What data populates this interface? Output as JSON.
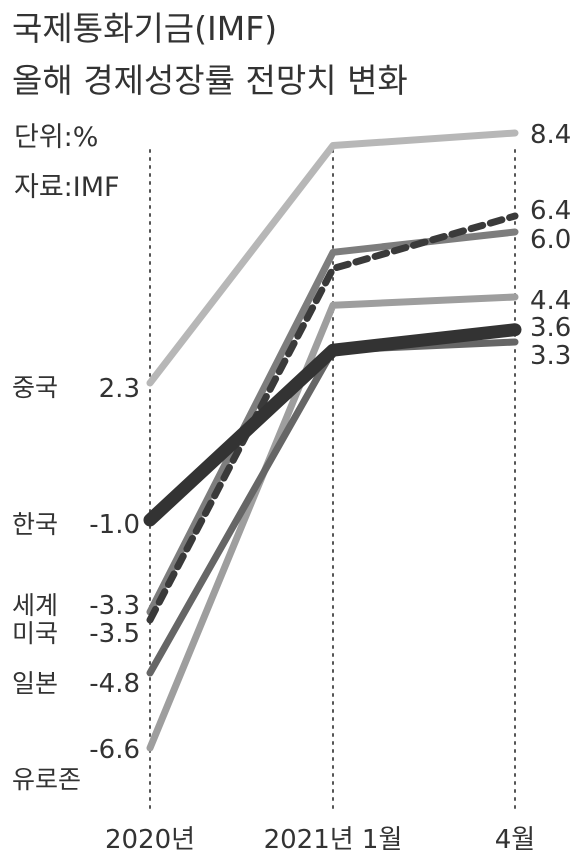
{
  "header": {
    "title_line1": "국제통화기금(IMF)",
    "title_line2": "올해 경제성장률 전망치 변화",
    "unit": "단위:%",
    "source": "자료:IMF"
  },
  "chart_data": {
    "type": "line",
    "title": "국제통화기금(IMF) 올해 경제성장률 전망치 변화",
    "unit": "단위:%",
    "source": "자료:IMF",
    "categories": [
      "2020년",
      "2021년 1월",
      "4월"
    ],
    "ylim": [
      -6.6,
      8.4
    ],
    "grid": "vertical dotted lines at each category",
    "legend": "direct labels at left and right",
    "series": [
      {
        "name": "중국",
        "values": [
          2.3,
          8.1,
          8.4
        ],
        "color": "#b7b7b7",
        "dashed": false,
        "width": 7,
        "start_label": "2.3",
        "end_label": "8.4"
      },
      {
        "name": "미국",
        "values": [
          -3.5,
          5.1,
          6.4
        ],
        "color": "#3a3a3a",
        "dashed": true,
        "width": 7,
        "start_label": "-3.5",
        "end_label": "6.4"
      },
      {
        "name": "세계",
        "values": [
          -3.3,
          5.5,
          6.0
        ],
        "color": "#7d7d7d",
        "dashed": false,
        "width": 7,
        "start_label": "-3.3",
        "end_label": "6.0"
      },
      {
        "name": "유로존",
        "values": [
          -6.6,
          4.2,
          4.4
        ],
        "color": "#9e9e9e",
        "dashed": false,
        "width": 7,
        "start_label": "-6.6",
        "end_label": "4.4"
      },
      {
        "name": "한국",
        "values": [
          -1.0,
          3.1,
          3.6
        ],
        "color": "#333333",
        "dashed": false,
        "width": 13,
        "start_label": "-1.0",
        "end_label": "3.6"
      },
      {
        "name": "일본",
        "values": [
          -4.8,
          3.1,
          3.3
        ],
        "color": "#666666",
        "dashed": false,
        "width": 7,
        "start_label": "-4.8",
        "end_label": "3.3"
      }
    ]
  }
}
